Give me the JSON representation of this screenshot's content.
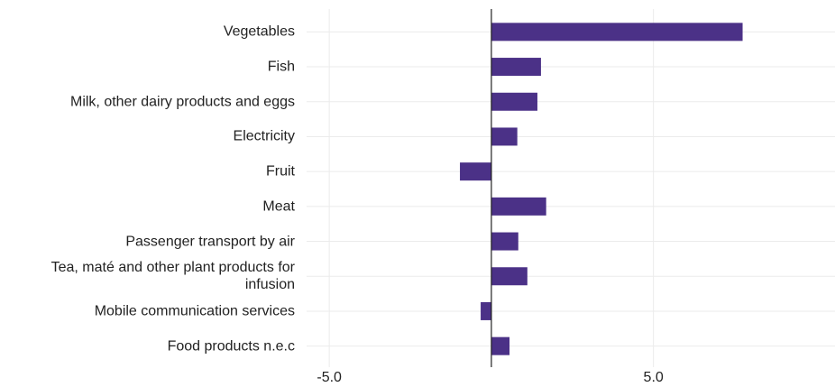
{
  "chart_data": {
    "type": "bar",
    "orientation": "horizontal",
    "categories": [
      "Vegetables",
      "Fish",
      "Milk, other dairy products and eggs",
      "Electricity",
      "Fruit",
      "Meat",
      "Passenger transport by air",
      "Tea, maté and other plant products for infusion",
      "Mobile communication services",
      "Food products n.e.c"
    ],
    "values": [
      7.75,
      1.53,
      1.42,
      0.8,
      -0.97,
      1.69,
      0.83,
      1.11,
      -0.33,
      0.56
    ],
    "color": "#4b3187",
    "xlim": [
      -5.7,
      10.6
    ],
    "xticks": [
      {
        "value": -5,
        "label": "-5.0"
      },
      {
        "value": 5,
        "label": "5.0"
      }
    ],
    "grid": true
  }
}
